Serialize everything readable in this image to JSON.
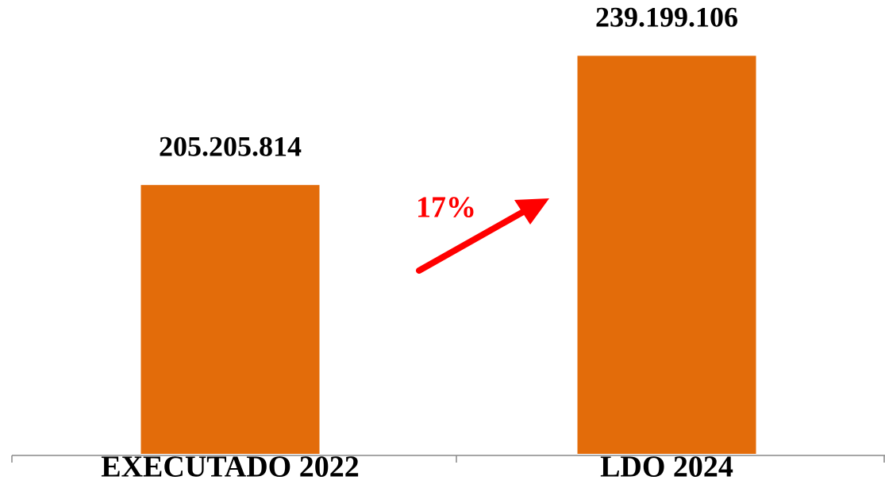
{
  "chart_data": {
    "type": "bar",
    "categories": [
      "EXECUTADO 2022",
      "LDO 2024"
    ],
    "values": [
      205205814,
      239199106
    ],
    "value_labels": [
      "205.205.814",
      "239.199.106"
    ],
    "color": "#e36c0a",
    "ylim": [
      134500000,
      249700000
    ],
    "annotation": "17%",
    "annotation_color": "#ff0000"
  }
}
